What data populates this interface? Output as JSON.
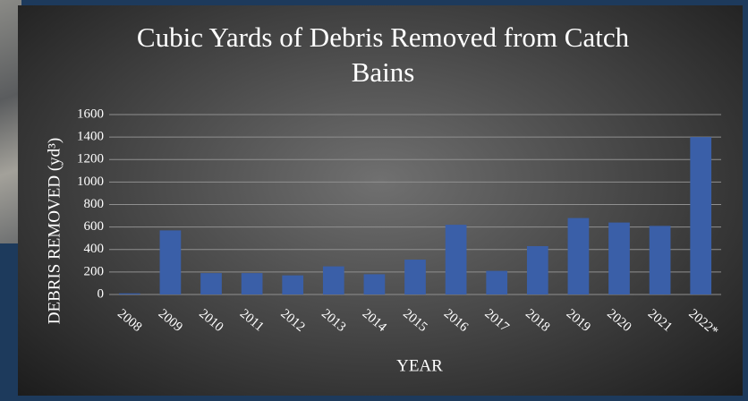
{
  "chart_data": {
    "type": "bar",
    "title": "Cubic Yards of Debris Removed from Catch Bains",
    "x_label": "YEAR",
    "y_label": "DEBRIS REMOVED (yd³)",
    "categories": [
      "2008",
      "2009",
      "2010",
      "2011",
      "2012",
      "2013",
      "2014",
      "2015",
      "2016",
      "2017",
      "2018",
      "2019",
      "2020",
      "2021",
      "2022*"
    ],
    "values": [
      10,
      570,
      190,
      190,
      170,
      250,
      180,
      310,
      620,
      210,
      430,
      680,
      640,
      610,
      1400
    ],
    "color": "#3a5fa8",
    "ylim": [
      0,
      1600
    ],
    "yticks": [
      0,
      200,
      400,
      600,
      800,
      1000,
      1200,
      1400,
      1600
    ],
    "grid": true
  }
}
